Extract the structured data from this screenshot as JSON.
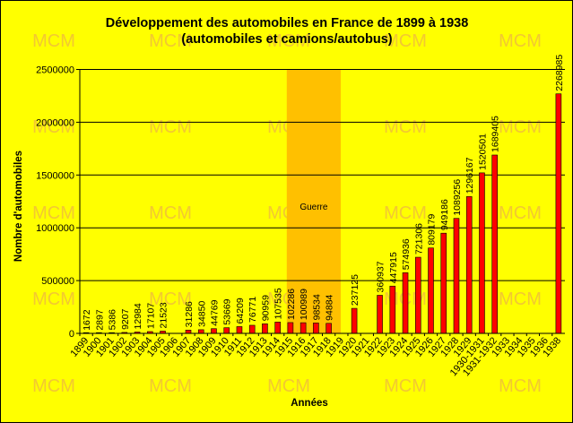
{
  "chart_data": {
    "type": "bar",
    "title_line1": "Développement des automobiles en France de 1899 à 1938",
    "title_line2": "(automobiles et camions/autobus)",
    "xlabel": "Années",
    "ylabel": "Nombre d'automobiles",
    "ylim": [
      0,
      2500000
    ],
    "y_ticks": [
      "0",
      "500000",
      "1000000",
      "1500000",
      "2000000",
      "2500000"
    ],
    "y_tick_values": [
      0,
      500000,
      1000000,
      1500000,
      2000000,
      2500000
    ],
    "grid": true,
    "categories": [
      "1899",
      "1900",
      "1901",
      "1902",
      "1903",
      "1904",
      "1905",
      "1906",
      "1907",
      "1908",
      "1909",
      "1910",
      "1911",
      "1912",
      "1913",
      "1914",
      "1915",
      "1916",
      "1917",
      "1918",
      "1919",
      "1920",
      "1921",
      "1922",
      "1923",
      "1924",
      "1925",
      "1926",
      "1927",
      "1928",
      "1929",
      "1930-1931",
      "1931-1932",
      "1933",
      "1934",
      "1935",
      "1936",
      "1938"
    ],
    "values": [
      1672,
      2897,
      5386,
      9207,
      12984,
      17107,
      21523,
      null,
      31286,
      34850,
      44769,
      53669,
      64209,
      76771,
      90959,
      107535,
      102286,
      100989,
      98534,
      94884,
      null,
      237125,
      null,
      360937,
      447915,
      574936,
      721306,
      809179,
      949186,
      1089256,
      1296167,
      1520501,
      1689405,
      null,
      null,
      null,
      null,
      2268985
    ],
    "data_labels": [
      "1672",
      "2897",
      "5386",
      "9207",
      "12984",
      "17107",
      "21523",
      "",
      "31286",
      "34850",
      "44769",
      "53669",
      "64209",
      "76771",
      "90959",
      "107535",
      "102286",
      "100989",
      "98534",
      "94884",
      "",
      "237125",
      "",
      "360937",
      "447915",
      "574936",
      "721306",
      "809179",
      "949186",
      "1089256",
      "1296167",
      "1520501",
      "1689405",
      "",
      "",
      "",
      "",
      "2268985"
    ],
    "slot_index": [
      0,
      1,
      2,
      3,
      4,
      5,
      6,
      7,
      8,
      9,
      10,
      11,
      12,
      13,
      14,
      15,
      16,
      17,
      18,
      19,
      20,
      21,
      22,
      23,
      24,
      25,
      26,
      27,
      28,
      29,
      30,
      31,
      32,
      33,
      34,
      35,
      36,
      37
    ],
    "highlight": {
      "label": "Guerre",
      "from_category": "1915",
      "to_category": "1919"
    },
    "colors": {
      "bar": "#ff0000",
      "bar_side": "#8a0000",
      "background": "#ffff00",
      "highlight": "#ffc000",
      "watermark": "#f2c832"
    },
    "watermark_text": "MCM"
  }
}
